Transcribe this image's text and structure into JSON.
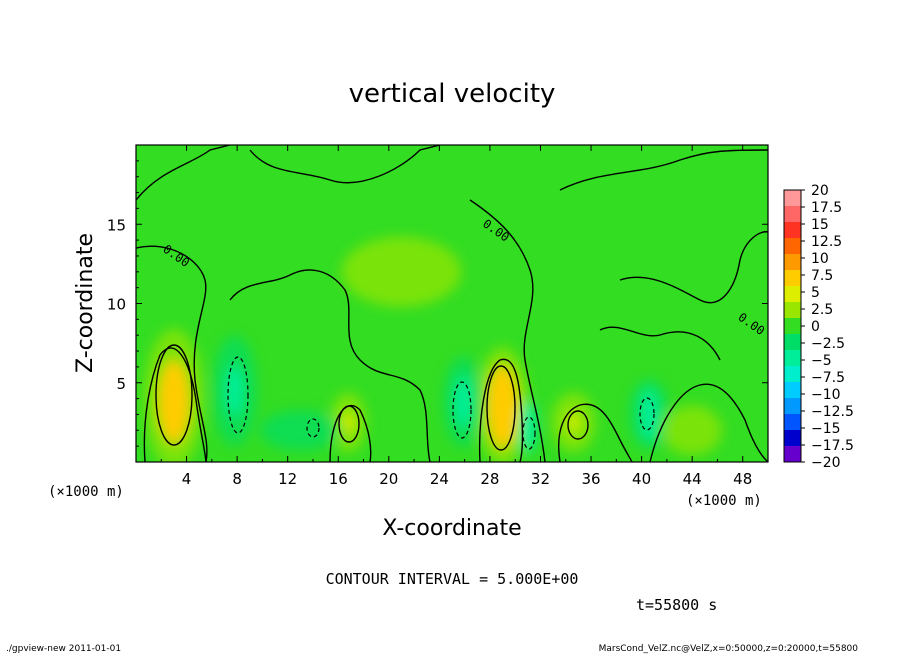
{
  "title": "vertical velocity",
  "contour_interval_label": "CONTOUR INTERVAL = 5.000E+00",
  "time_label": "t=55800 s",
  "footer_left": "./gpview-new  2011-01-01",
  "footer_right": "MarsCond_VelZ.nc@VelZ,x=0:50000,z=0:20000,t=55800",
  "colors": {
    "background": "#ffffff",
    "field_base": "#33dd22",
    "contour": "#000000"
  },
  "chart_data": {
    "type": "heatmap",
    "title": "vertical velocity",
    "xlabel": "X-coordinate",
    "ylabel": "Z-coordinate",
    "x_unit_label": "(×1000 m)",
    "y_unit_label": "(×1000 m)",
    "xlim": [
      0,
      50
    ],
    "ylim": [
      0,
      20
    ],
    "x_ticks": [
      4,
      8,
      12,
      16,
      20,
      24,
      28,
      32,
      36,
      40,
      44,
      48
    ],
    "y_ticks": [
      5,
      10,
      15
    ],
    "contour_interval": 5.0,
    "contour_labels": [
      {
        "text": "0.00",
        "x": 3,
        "z": 12.8
      },
      {
        "text": "0.00",
        "x": 28.3,
        "z": 14.4
      },
      {
        "text": "0.00",
        "x": 48.5,
        "z": 8.5
      }
    ],
    "colorbar": {
      "labels": [
        "20",
        "17.5",
        "15",
        "12.5",
        "10",
        "7.5",
        "5",
        "2.5",
        "0",
        "−2.5",
        "−5",
        "−7.5",
        "−10",
        "−12.5",
        "−15",
        "−17.5",
        "−20"
      ],
      "values": [
        20,
        17.5,
        15,
        12.5,
        10,
        7.5,
        5,
        2.5,
        0,
        -2.5,
        -5,
        -7.5,
        -10,
        -12.5,
        -15,
        -17.5,
        -20
      ],
      "colors": [
        "#ff9999",
        "#ff6666",
        "#ff3322",
        "#ff6600",
        "#ff9900",
        "#ffcc00",
        "#ddee00",
        "#99e600",
        "#33dd22",
        "#00dd66",
        "#00ee99",
        "#00eecc",
        "#00ccff",
        "#0099ff",
        "#0055ff",
        "#0000cc",
        "#6600cc"
      ]
    },
    "updrafts": [
      {
        "x": 3,
        "z": 3.8,
        "peak": 7.5
      },
      {
        "x": 16.8,
        "z": 2.5,
        "peak": 3.5
      },
      {
        "x": 29,
        "z": 3.5,
        "peak": 7.5
      },
      {
        "x": 34.6,
        "z": 2.5,
        "peak": 3.5
      }
    ],
    "downdrafts": [
      {
        "x": 7.8,
        "z": 4.5,
        "peak": -5
      },
      {
        "x": 25.9,
        "z": 3.8,
        "peak": -6
      },
      {
        "x": 31,
        "z": 2.2,
        "peak": -6
      },
      {
        "x": 40.6,
        "z": 3.0,
        "peak": -6
      }
    ]
  }
}
